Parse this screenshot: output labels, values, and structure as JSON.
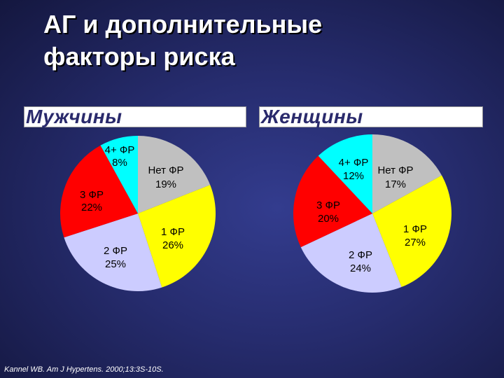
{
  "title_line1": "АГ и дополнительные",
  "title_line2": "факторы риска",
  "citation": "Kannel WB. Am J Hypertens. 2000;13:3S-10S.",
  "chart_data": [
    {
      "type": "pie",
      "title": "Мужчины",
      "slices": [
        {
          "label": "Нет ФР",
          "value": 19,
          "value_label": "19%",
          "color": "#c0c0c0"
        },
        {
          "label": "1 ФР",
          "value": 26,
          "value_label": "26%",
          "color": "#ffff00"
        },
        {
          "label": "2 ФР",
          "value": 25,
          "value_label": "25%",
          "color": "#ccccff"
        },
        {
          "label": "3 ФР",
          "value": 22,
          "value_label": "22%",
          "color": "#ff0000"
        },
        {
          "label": "4+ ФР",
          "value": 8,
          "value_label": "8%",
          "color": "#00ffff"
        }
      ]
    },
    {
      "type": "pie",
      "title": "Женщины",
      "slices": [
        {
          "label": "Нет ФР",
          "value": 17,
          "value_label": "17%",
          "color": "#c0c0c0"
        },
        {
          "label": "1 ФР",
          "value": 27,
          "value_label": "27%",
          "color": "#ffff00"
        },
        {
          "label": "2 ФР",
          "value": 24,
          "value_label": "24%",
          "color": "#ccccff"
        },
        {
          "label": "3 ФР",
          "value": 20,
          "value_label": "20%",
          "color": "#ff0000"
        },
        {
          "label": "4+ ФР",
          "value": 12,
          "value_label": "12%",
          "color": "#00ffff"
        }
      ]
    }
  ]
}
